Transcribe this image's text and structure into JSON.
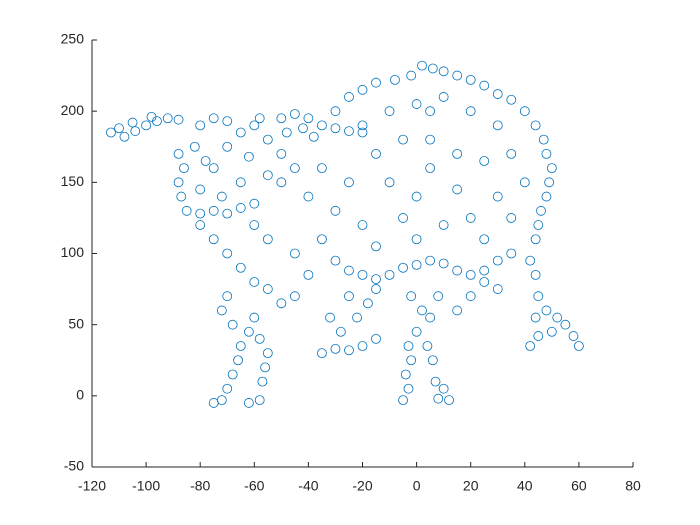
{
  "chart_data": {
    "type": "scatter",
    "marker": "open-circle",
    "series": [
      {
        "color": "#0072bd",
        "x": [
          -113,
          -108,
          -104,
          -100,
          -96,
          -92,
          -88,
          -105,
          -98,
          -110,
          -88,
          -86,
          -88,
          -87,
          -85,
          -80,
          -75,
          -70,
          -65,
          -60,
          -80,
          -75,
          -70,
          -65,
          -80,
          -75,
          -70,
          -60,
          -55,
          -50,
          -45,
          -55,
          -65,
          -72,
          -82,
          -78,
          -62,
          -50,
          -48,
          -58,
          -50,
          -45,
          -40,
          -35,
          -30,
          -25,
          -20,
          -42,
          -38,
          -30,
          -25,
          -20,
          -15,
          -8,
          -2,
          2,
          6,
          10,
          15,
          20,
          25,
          30,
          35,
          40,
          44,
          47,
          48,
          50,
          49,
          48,
          46,
          45,
          44,
          -20,
          -10,
          0,
          10,
          20,
          30,
          -15,
          -5,
          5,
          5,
          5,
          15,
          25,
          35,
          -25,
          -10,
          0,
          15,
          30,
          40,
          -30,
          -20,
          -5,
          10,
          20,
          35,
          -35,
          -15,
          0,
          25,
          -40,
          -35,
          -30,
          -25,
          -20,
          -15,
          -10,
          -5,
          0,
          5,
          10,
          15,
          20,
          25,
          30,
          35,
          -80,
          -75,
          -70,
          -65,
          -60,
          -55,
          -50,
          -45,
          -40,
          -45,
          -55,
          -60,
          -75,
          -72,
          -70,
          -68,
          -66,
          -62,
          -58,
          -57,
          -56,
          -55,
          -58,
          -62,
          -65,
          -60,
          -68,
          -72,
          -70,
          -35,
          -30,
          -25,
          -20,
          -15,
          -28,
          -22,
          -18,
          -15,
          -25,
          -32,
          -5,
          -3,
          -4,
          -2,
          -3,
          0,
          5,
          8,
          10,
          12,
          7,
          6,
          4,
          2,
          -2,
          8,
          42,
          45,
          44,
          48,
          52,
          55,
          58,
          60,
          45,
          44,
          42,
          50,
          15,
          20,
          25,
          30
        ],
        "y": [
          185,
          182,
          186,
          190,
          193,
          195,
          194,
          192,
          196,
          188,
          170,
          160,
          150,
          140,
          130,
          128,
          130,
          128,
          132,
          135,
          145,
          160,
          175,
          185,
          190,
          195,
          193,
          190,
          180,
          170,
          160,
          155,
          150,
          140,
          175,
          165,
          168,
          150,
          185,
          195,
          195,
          198,
          195,
          190,
          188,
          186,
          185,
          188,
          182,
          200,
          210,
          215,
          220,
          222,
          225,
          232,
          230,
          228,
          225,
          222,
          218,
          212,
          208,
          200,
          190,
          180,
          170,
          160,
          150,
          140,
          130,
          120,
          110,
          190,
          200,
          205,
          210,
          200,
          190,
          170,
          180,
          160,
          180,
          200,
          170,
          165,
          170,
          150,
          150,
          140,
          145,
          140,
          150,
          130,
          120,
          125,
          120,
          125,
          125,
          110,
          105,
          110,
          110,
          140,
          160,
          95,
          88,
          85,
          82,
          85,
          90,
          92,
          95,
          93,
          88,
          85,
          88,
          95,
          100,
          120,
          110,
          100,
          90,
          80,
          75,
          65,
          70,
          85,
          100,
          110,
          120,
          -5,
          -3,
          5,
          15,
          25,
          -5,
          -3,
          10,
          20,
          30,
          40,
          45,
          35,
          55,
          50,
          60,
          70,
          30,
          33,
          32,
          35,
          40,
          45,
          55,
          65,
          75,
          70,
          55,
          -3,
          5,
          15,
          25,
          35,
          45,
          55,
          -2,
          5,
          -3,
          10,
          25,
          35,
          60,
          70,
          70,
          35,
          42,
          55,
          60,
          55,
          50,
          42,
          35,
          70,
          85,
          95,
          45,
          60,
          70,
          80,
          75
        ]
      }
    ],
    "xlim": [
      -120,
      80
    ],
    "xticks": [
      -120,
      -100,
      -80,
      -60,
      -40,
      -20,
      0,
      20,
      40,
      60,
      80
    ],
    "ylim": [
      -50,
      250
    ],
    "yticks": [
      -50,
      0,
      50,
      100,
      150,
      200,
      250
    ]
  }
}
